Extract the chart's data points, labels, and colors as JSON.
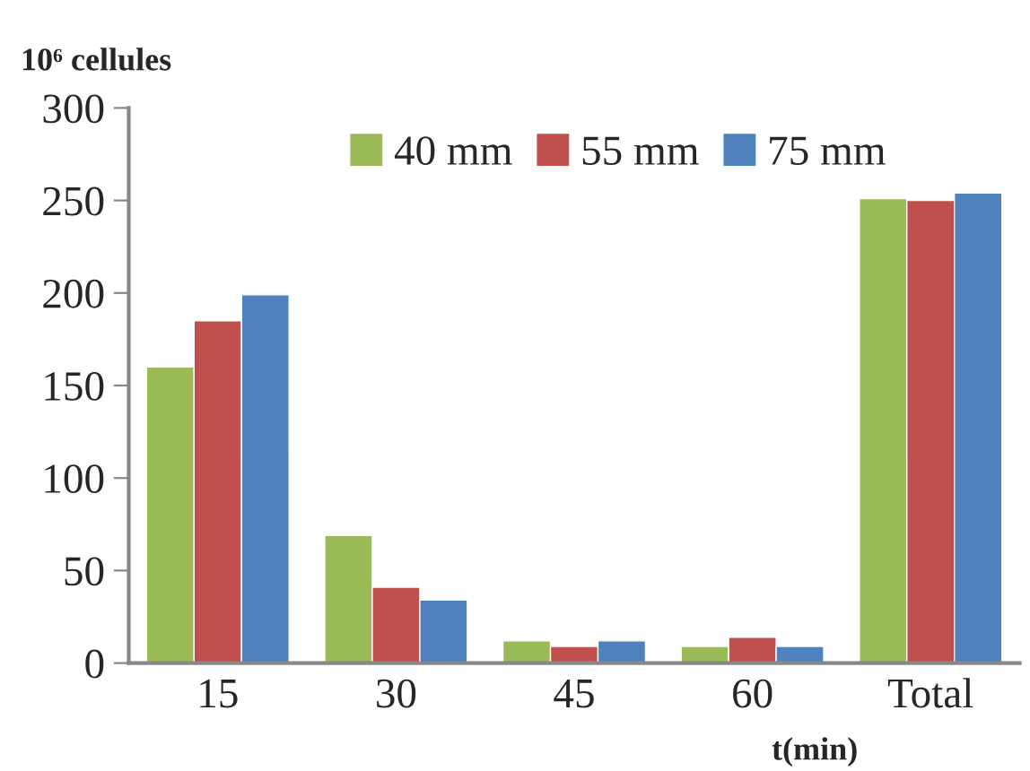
{
  "chart_data": {
    "type": "bar",
    "ylabel": "10⁶ cellules",
    "xlabel": "t(min)",
    "categories": [
      "15",
      "30",
      "45",
      "60",
      "Total"
    ],
    "series": [
      {
        "name": "40 mm",
        "color": "#9bbb59",
        "values": [
          160,
          69,
          12,
          9,
          251
        ]
      },
      {
        "name": "55 mm",
        "color": "#c0504d",
        "values": [
          185,
          41,
          9,
          14,
          250
        ]
      },
      {
        "name": "75 mm",
        "color": "#4f81bd",
        "values": [
          199,
          34,
          12,
          9,
          254
        ]
      }
    ],
    "ylim": [
      0,
      300
    ],
    "yticks": [
      0,
      50,
      100,
      150,
      200,
      250,
      300
    ],
    "grid": false,
    "legend": "top"
  }
}
